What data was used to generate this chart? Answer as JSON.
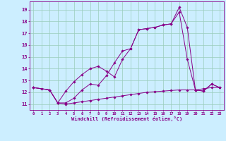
{
  "xlabel": "Windchill (Refroidissement éolien,°C)",
  "background_color": "#cceeff",
  "grid_color": "#99ccbb",
  "line_color": "#880088",
  "xlim": [
    -0.5,
    23.5
  ],
  "ylim": [
    10.5,
    19.7
  ],
  "yticks": [
    11,
    12,
    13,
    14,
    15,
    16,
    17,
    18,
    19
  ],
  "xticks": [
    0,
    1,
    2,
    3,
    4,
    5,
    6,
    7,
    8,
    9,
    10,
    11,
    12,
    13,
    14,
    15,
    16,
    17,
    18,
    19,
    20,
    21,
    22,
    23
  ],
  "series1_x": [
    0,
    1,
    2,
    3,
    4,
    5,
    6,
    7,
    8,
    9,
    10,
    11,
    12,
    13,
    14,
    15,
    16,
    17,
    18,
    19,
    20,
    21,
    22,
    23
  ],
  "series1_y": [
    12.4,
    12.3,
    12.2,
    11.1,
    11.0,
    11.1,
    11.2,
    11.3,
    11.4,
    11.5,
    11.6,
    11.7,
    11.8,
    11.9,
    12.0,
    12.05,
    12.1,
    12.15,
    12.2,
    12.2,
    12.2,
    12.3,
    12.4,
    12.4
  ],
  "series2_x": [
    0,
    2,
    3,
    4,
    5,
    6,
    7,
    8,
    9,
    10,
    11,
    12,
    13,
    14,
    15,
    16,
    17,
    18,
    19,
    20,
    21,
    22,
    23
  ],
  "series2_y": [
    12.4,
    12.2,
    11.1,
    11.1,
    11.5,
    12.2,
    12.7,
    12.6,
    13.4,
    14.5,
    15.5,
    15.7,
    17.3,
    17.4,
    17.5,
    17.7,
    17.8,
    19.2,
    17.5,
    12.2,
    12.1,
    12.7,
    12.4
  ],
  "series3_x": [
    0,
    2,
    3,
    4,
    5,
    6,
    7,
    8,
    9,
    10,
    11,
    12,
    13,
    14,
    15,
    16,
    17,
    18,
    19,
    20,
    21,
    22,
    23
  ],
  "series3_y": [
    12.4,
    12.2,
    11.1,
    12.1,
    12.9,
    13.5,
    14.0,
    14.2,
    13.8,
    13.3,
    14.8,
    15.7,
    17.3,
    17.4,
    17.5,
    17.7,
    17.8,
    18.8,
    14.8,
    12.2,
    12.1,
    12.7,
    12.4
  ]
}
